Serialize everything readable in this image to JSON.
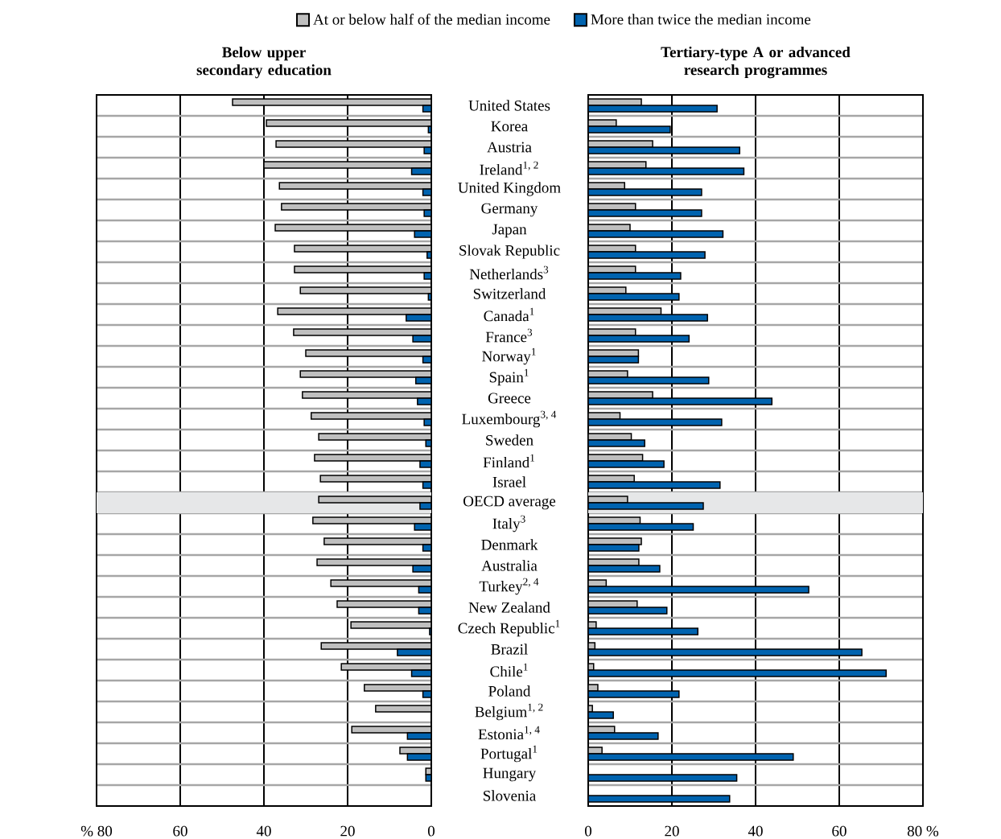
{
  "chart_data": [
    {
      "type": "bar",
      "orientation": "horizontal",
      "title": "Below upper secondary education",
      "legend": "top",
      "grid": true,
      "tick_labels": "x",
      "categories": [
        "United States",
        "Korea",
        "Austria",
        "Ireland$^{1, 2}$",
        "United Kingdom",
        "Germany",
        "Japan",
        "Slovak Republic",
        "Netherlands$^{3}$",
        "Switzerland",
        "Canada$^{1}$",
        "France$^{3}$",
        "Norway$^{1}$",
        "Spain$^{1}$",
        "Greece",
        "Luxembourg$^{3, 4}$",
        "Sweden",
        "Finland$^{1}$",
        "Israel",
        "OECD average",
        "Italy$^{3}$",
        "Denmark",
        "Australia",
        "Turkey$^{2, 4}$",
        "New Zealand",
        "Czech Republic$^{1}$",
        "Brazil",
        "Chile$^{1}$",
        "Poland",
        "Belgium$^{1, 2}$",
        "Estonia$^{1, 4}$",
        "Portugal$^{1}$",
        "Hungary",
        "Slovenia"
      ],
      "xlim": [
        80,
        0
      ],
      "xticks": [
        {
          "value": 80,
          "label": "% 80"
        },
        60,
        40,
        20,
        0
      ],
      "bands": [
        {
          "axis": "y",
          "from": "OECD average",
          "to": "OECD average",
          "color": "#e6e7e8"
        }
      ],
      "series": [
        {
          "name": "At or below half of the median income",
          "color": "#bfbfbf",
          "values": [
            47.5,
            39.4,
            37.1,
            40.0,
            36.3,
            35.8,
            37.3,
            32.7,
            32.7,
            31.3,
            36.7,
            32.9,
            30.0,
            31.3,
            30.8,
            28.7,
            26.9,
            27.9,
            26.5,
            26.9,
            28.3,
            25.6,
            27.3,
            24.0,
            22.5,
            19.2,
            26.3,
            21.5,
            16.0,
            13.3,
            19.0,
            7.5,
            1.3,
            null
          ]
        },
        {
          "name": "More than twice the median income",
          "color": "#0063af",
          "values": [
            2.0,
            0.7,
            1.7,
            4.7,
            2.0,
            1.7,
            4.0,
            1.0,
            1.7,
            0.7,
            6.0,
            4.4,
            2.0,
            3.7,
            3.3,
            1.7,
            1.3,
            2.7,
            2.0,
            2.7,
            4.0,
            2.0,
            4.4,
            3.0,
            3.0,
            0.4,
            8.1,
            4.7,
            2.0,
            null,
            5.7,
            5.7,
            1.3,
            null
          ]
        }
      ]
    },
    {
      "type": "bar",
      "orientation": "horizontal",
      "title": "Tertiary-type A or advanced research programmes",
      "grid": true,
      "categories": [
        "United States",
        "Korea",
        "Austria",
        "Ireland$^{1, 2}$",
        "United Kingdom",
        "Germany",
        "Japan",
        "Slovak Republic",
        "Netherlands$^{3}$",
        "Switzerland",
        "Canada$^{1}$",
        "France$^{3}$",
        "Norway$^{1}$",
        "Spain$^{1}$",
        "Greece",
        "Luxembourg$^{3, 4}$",
        "Sweden",
        "Finland$^{1}$",
        "Israel",
        "OECD average",
        "Italy$^{3}$",
        "Denmark",
        "Australia",
        "Turkey$^{2, 4}$",
        "New Zealand",
        "Czech Republic$^{1}$",
        "Brazil",
        "Chile$^{1}$",
        "Poland",
        "Belgium$^{1, 2}$",
        "Estonia$^{1, 4}$",
        "Portugal$^{1}$",
        "Hungary",
        "Slovenia"
      ],
      "xlim": [
        0,
        80
      ],
      "xticks": [
        0,
        20,
        40,
        60,
        {
          "value": 80,
          "label": "80 %"
        }
      ],
      "bands": [
        {
          "axis": "y",
          "from": "OECD average",
          "to": "OECD average",
          "color": "#e6e7e8"
        }
      ],
      "series": [
        {
          "color": "#bfbfbf",
          "values": [
            12.7,
            6.7,
            15.4,
            13.8,
            8.7,
            11.3,
            10.0,
            11.3,
            11.3,
            9.0,
            17.4,
            11.3,
            12.0,
            9.4,
            15.4,
            7.6,
            10.3,
            13.0,
            11.0,
            9.4,
            12.4,
            12.7,
            12.1,
            4.3,
            11.7,
            1.9,
            1.6,
            1.3,
            2.3,
            1.0,
            6.3,
            3.3,
            null,
            null
          ]
        },
        {
          "color": "#0063af",
          "values": [
            30.8,
            19.6,
            36.2,
            37.2,
            27.1,
            27.1,
            32.2,
            27.9,
            22.1,
            21.7,
            28.5,
            24.1,
            12.0,
            28.8,
            43.9,
            31.9,
            13.5,
            18.1,
            31.5,
            27.5,
            25.1,
            12.1,
            17.1,
            52.7,
            18.8,
            26.2,
            65.4,
            71.2,
            21.7,
            6.0,
            16.7,
            49.0,
            35.5,
            33.8
          ]
        }
      ]
    }
  ]
}
